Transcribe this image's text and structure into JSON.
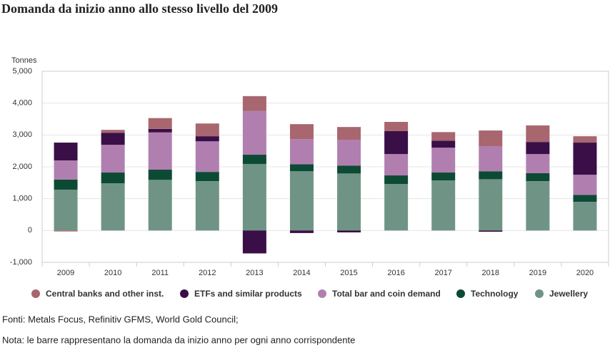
{
  "chart_data": {
    "type": "stacked-bar",
    "title": "Domanda da inizio anno allo stesso livello del 2009",
    "y_label": "Tonnes",
    "categories": [
      "2009",
      "2010",
      "2011",
      "2012",
      "2013",
      "2014",
      "2015",
      "2016",
      "2017",
      "2018",
      "2019",
      "2020"
    ],
    "series": [
      {
        "name": "Central banks and other inst.",
        "color": "#a8666f",
        "values": [
          -30,
          90,
          340,
          400,
          470,
          470,
          400,
          290,
          270,
          490,
          520,
          200
        ]
      },
      {
        "name": "ETFs and similar products",
        "color": "#3a0f47",
        "values": [
          560,
          380,
          110,
          160,
          -720,
          -80,
          -60,
          720,
          220,
          -40,
          380,
          1010
        ]
      },
      {
        "name": "Total bar and coin demand",
        "color": "#b07fb0",
        "values": [
          600,
          870,
          1170,
          960,
          1370,
          790,
          810,
          670,
          780,
          790,
          600,
          630
        ]
      },
      {
        "name": "Technology",
        "color": "#0d4a35",
        "values": [
          320,
          340,
          320,
          290,
          290,
          220,
          250,
          270,
          250,
          250,
          250,
          220
        ]
      },
      {
        "name": "Jewellery",
        "color": "#6f9485",
        "values": [
          1280,
          1480,
          1590,
          1550,
          2090,
          1860,
          1790,
          1460,
          1570,
          1610,
          1550,
          900
        ]
      }
    ],
    "ylim": [
      -1000,
      5000
    ],
    "yticks": [
      {
        "value": -1000,
        "label": "-1,000"
      },
      0,
      {
        "value": 1000,
        "label": "1,000"
      },
      {
        "value": 2000,
        "label": "2,000"
      },
      {
        "value": 3000,
        "label": "3,000"
      },
      {
        "value": 4000,
        "label": "4,000"
      },
      {
        "value": 5000,
        "label": "5,000"
      }
    ],
    "grid": true,
    "source": "Fonti: Metals Focus, Refinitiv GFMS, World Gold Council;",
    "note": "Nota: le barre rappresentano la domanda da inizio anno per ogni anno corrispondente"
  }
}
